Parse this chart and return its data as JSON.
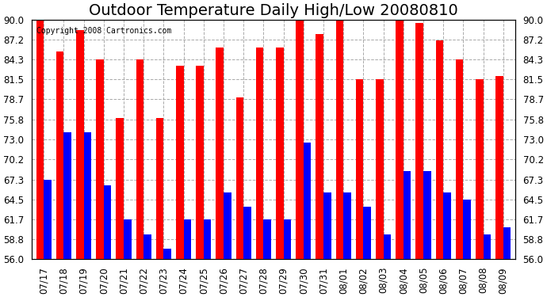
{
  "title": "Outdoor Temperature Daily High/Low 20080810",
  "copyright": "Copyright 2008 Cartronics.com",
  "dates": [
    "07/17",
    "07/18",
    "07/19",
    "07/20",
    "07/21",
    "07/22",
    "07/23",
    "07/24",
    "07/25",
    "07/26",
    "07/27",
    "07/28",
    "07/29",
    "07/30",
    "07/31",
    "08/01",
    "08/02",
    "08/03",
    "08/04",
    "08/05",
    "08/06",
    "08/07",
    "08/08",
    "08/09"
  ],
  "highs": [
    90.0,
    85.5,
    88.5,
    84.3,
    76.0,
    84.3,
    76.0,
    83.5,
    83.5,
    86.0,
    79.0,
    86.0,
    86.0,
    90.5,
    88.0,
    90.5,
    81.5,
    81.5,
    90.5,
    89.5,
    87.0,
    84.3,
    81.5,
    82.0
  ],
  "lows": [
    67.3,
    74.0,
    74.0,
    66.5,
    61.7,
    59.5,
    57.5,
    61.7,
    61.7,
    65.5,
    63.5,
    61.7,
    61.7,
    72.5,
    65.5,
    65.5,
    63.5,
    59.5,
    68.5,
    68.5,
    65.5,
    64.5,
    59.5,
    60.5
  ],
  "high_color": "#ff0000",
  "low_color": "#0000ff",
  "background_color": "#ffffff",
  "grid_color": "#aaaaaa",
  "ylim": [
    56.0,
    90.0
  ],
  "yticks": [
    56.0,
    58.8,
    61.7,
    64.5,
    67.3,
    70.2,
    73.0,
    75.8,
    78.7,
    81.5,
    84.3,
    87.2,
    90.0
  ],
  "title_fontsize": 14,
  "tick_fontsize": 8.5,
  "bar_width": 0.38
}
